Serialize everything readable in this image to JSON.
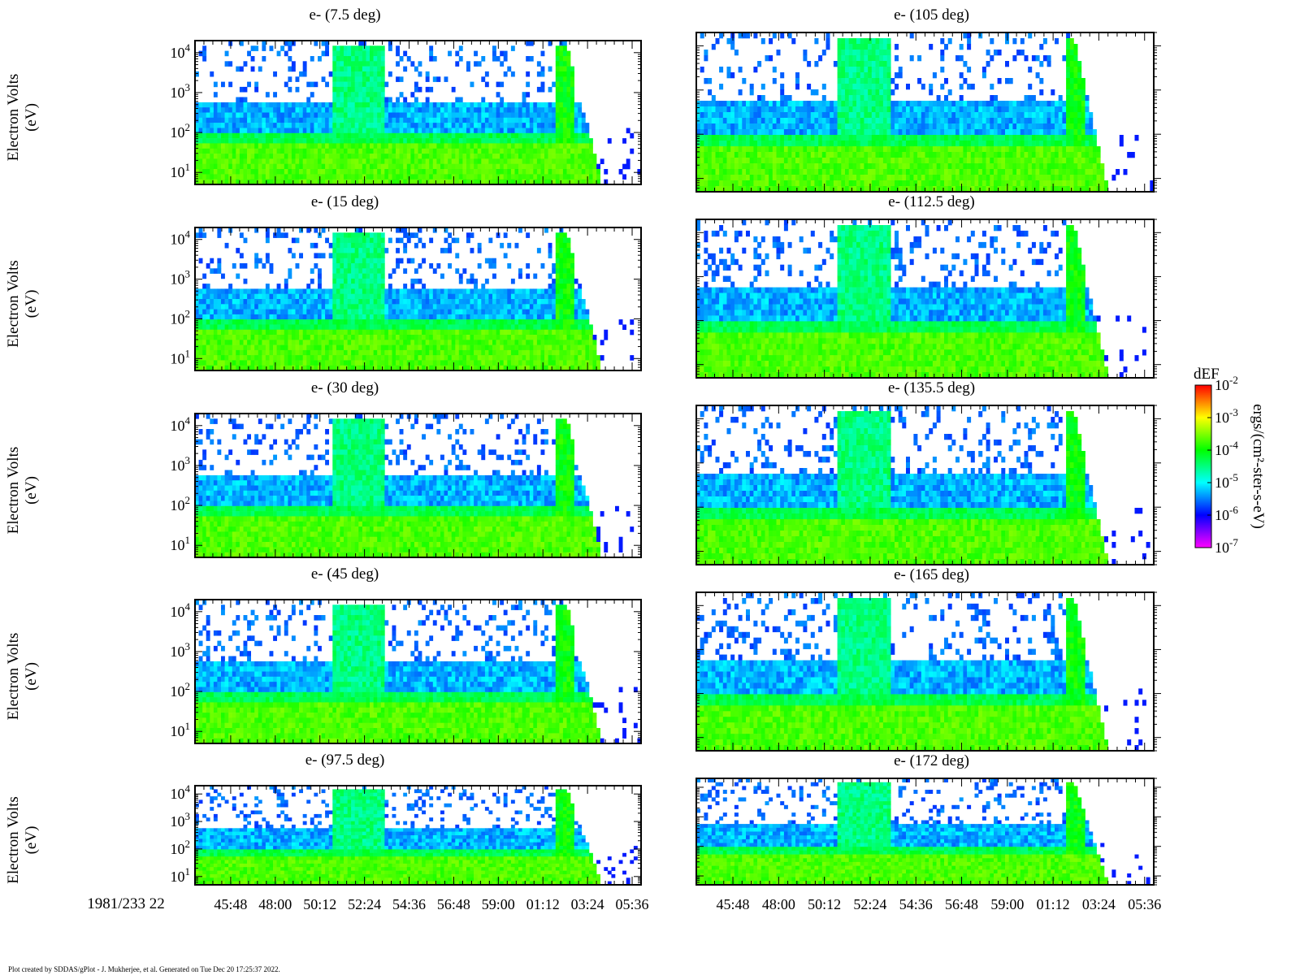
{
  "footer": {
    "credit": "Plot created by SDDAS/gPlot - J. Mukherjee, et al.  Generated on Tue Dec 20 17:25:37 2022."
  },
  "date_label": "1981/233 22",
  "y_axis_label_line1": "Electron Volts",
  "y_axis_label_line2": "(eV)",
  "colorbar": {
    "title": "dEF",
    "units": "ergs/(cm²-ster-s-eV)",
    "tick_mantissa": "10",
    "tick_exponents": [
      "-2",
      "-3",
      "-4",
      "-5",
      "-6",
      "-7"
    ],
    "min_exp": -7,
    "max_exp": -2,
    "colors": [
      "#ff00ff",
      "#0000ff",
      "#00ffff",
      "#00ff00",
      "#ffff00",
      "#ff0000"
    ]
  },
  "chart_data": {
    "type": "heatmap",
    "y_scale": "log",
    "y_range_eV": [
      5,
      20000
    ],
    "y_tick_mantissa": "10",
    "y_tick_exponents": [
      "1",
      "2",
      "3",
      "4"
    ],
    "x_tick_labels": [
      "45:48",
      "48:00",
      "50:12",
      "52:24",
      "54:36",
      "56:48",
      "59:00",
      "01:12",
      "03:24",
      "05:36"
    ],
    "panels": [
      {
        "title": "e- (7.5 deg)",
        "column": "left",
        "row": 0
      },
      {
        "title": "e- (15 deg)",
        "column": "left",
        "row": 1
      },
      {
        "title": "e- (30 deg)",
        "column": "left",
        "row": 2
      },
      {
        "title": "e- (45 deg)",
        "column": "left",
        "row": 3
      },
      {
        "title": "e- (97.5 deg)",
        "column": "left",
        "row": 4
      },
      {
        "title": "e- (105 deg)",
        "column": "right",
        "row": 0
      },
      {
        "title": "e- (112.5 deg)",
        "column": "right",
        "row": 1
      },
      {
        "title": "e- (135.5 deg)",
        "column": "right",
        "row": 2
      },
      {
        "title": "e- (165 deg)",
        "column": "right",
        "row": 3
      },
      {
        "title": "e- (172 deg)",
        "column": "right",
        "row": 4
      }
    ]
  }
}
